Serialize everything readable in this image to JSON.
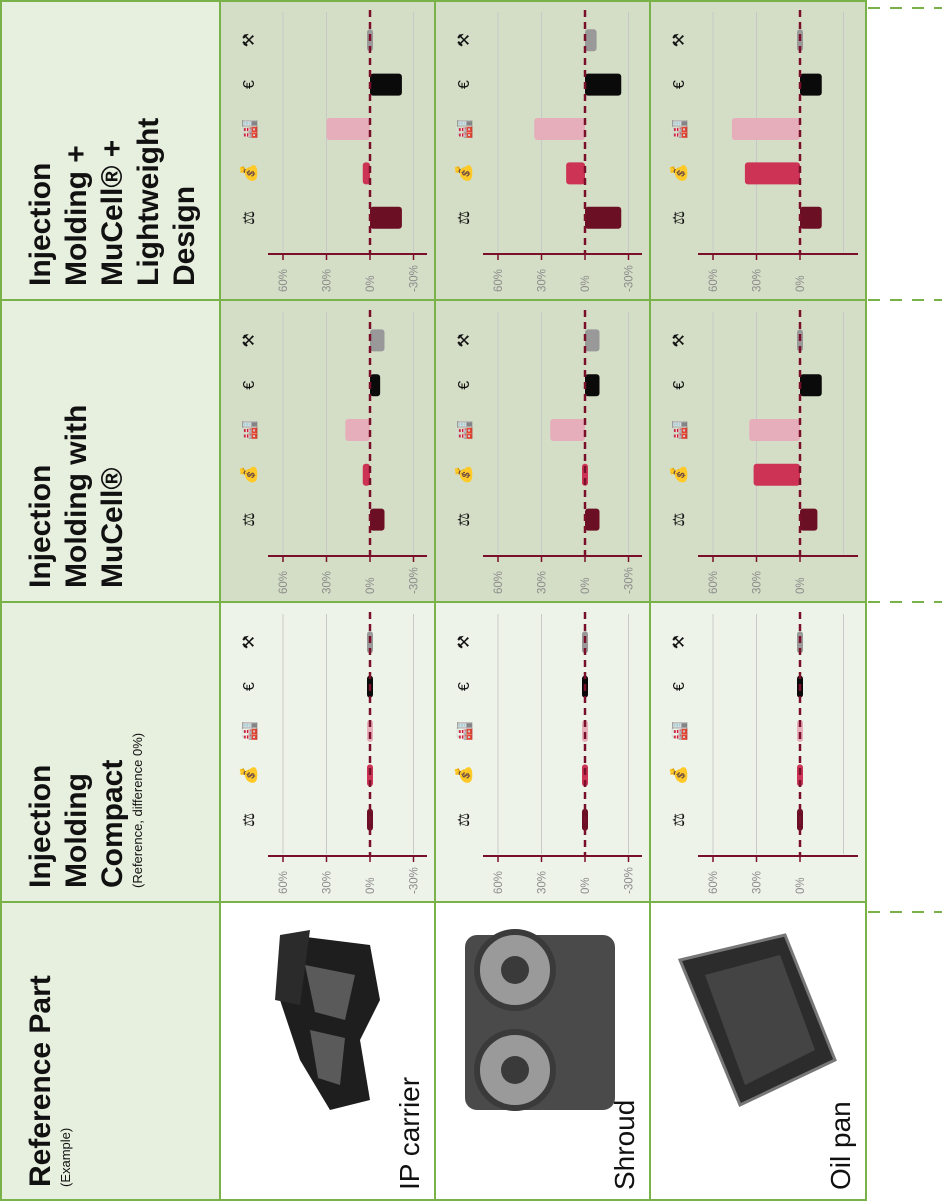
{
  "columns": [
    {
      "lines": [
        "Reference Part"
      ],
      "sub": "(Example)"
    },
    {
      "lines": [
        "Injection",
        "Molding",
        "Compact"
      ],
      "sub": "(Reference, difference 0%)"
    },
    {
      "lines": [
        "Injection",
        "Molding with",
        "MuCell®"
      ],
      "sub": ""
    },
    {
      "lines": [
        "Injection",
        "Molding +",
        "MuCell® +",
        "Lightweight",
        "Design"
      ],
      "sub": ""
    }
  ],
  "rows": [
    {
      "part": "IP carrier",
      "image": "ip-carrier-photo"
    },
    {
      "part": "Shroud",
      "image": "shroud-photo"
    },
    {
      "part": "Oil pan",
      "image": "oil-pan-photo"
    }
  ],
  "criteria": [
    {
      "icon": "weight-icon",
      "glyph": "⚖",
      "color": "#6b0f24"
    },
    {
      "icon": "money-bag-icon",
      "glyph": "💰",
      "color": "#cc3355"
    },
    {
      "icon": "factory-icon",
      "glyph": "🏭",
      "color": "#e6aebb"
    },
    {
      "icon": "euro-icon",
      "glyph": "€",
      "color": "#0a0a0a"
    },
    {
      "icon": "tools-icon",
      "glyph": "⚒",
      "color": "#999999"
    }
  ],
  "colors": {
    "grid_border": "#7ab24a",
    "header_bg": "#e7efde",
    "chart_bg_dark": "#d4dec6",
    "chart_bg_light": "#eef3ea",
    "baseline": "#7a0f2a",
    "axis": "#7a0f2a"
  },
  "chart_data": [
    {
      "type": "bar",
      "method": "Injection Molding Compact",
      "part": "IP carrier",
      "ticks": [
        "60%",
        "30%",
        "0%",
        "-30%"
      ],
      "ylim": [
        -35,
        65
      ],
      "categories": [
        "weight",
        "money",
        "factory",
        "euro",
        "tools"
      ],
      "values": [
        0,
        0,
        0,
        0,
        0
      ]
    },
    {
      "type": "bar",
      "method": "Injection Molding with MuCell®",
      "part": "IP carrier",
      "ticks": [
        "60%",
        "30%",
        "0%",
        "-30%"
      ],
      "ylim": [
        -35,
        65
      ],
      "categories": [
        "weight",
        "money",
        "factory",
        "euro",
        "tools"
      ],
      "values": [
        -10,
        5,
        17,
        -7,
        -10
      ]
    },
    {
      "type": "bar",
      "method": "Injection Molding + MuCell® + Lightweight Design",
      "part": "IP carrier",
      "ticks": [
        "60%",
        "30%",
        "0%",
        "-30%"
      ],
      "ylim": [
        -35,
        65
      ],
      "categories": [
        "weight",
        "money",
        "factory",
        "euro",
        "tools"
      ],
      "values": [
        -22,
        5,
        30,
        -22,
        0
      ]
    },
    {
      "type": "bar",
      "method": "Injection Molding Compact",
      "part": "Shroud",
      "ticks": [
        "60%",
        "30%",
        "0%",
        "-30%"
      ],
      "ylim": [
        -35,
        65
      ],
      "categories": [
        "weight",
        "money",
        "factory",
        "euro",
        "tools"
      ],
      "values": [
        0,
        0,
        0,
        0,
        0
      ]
    },
    {
      "type": "bar",
      "method": "Injection Molding with MuCell®",
      "part": "Shroud",
      "ticks": [
        "60%",
        "30%",
        "0%",
        "-30%"
      ],
      "ylim": [
        -35,
        65
      ],
      "categories": [
        "weight",
        "money",
        "factory",
        "euro",
        "tools"
      ],
      "values": [
        -10,
        2,
        24,
        -10,
        -10
      ]
    },
    {
      "type": "bar",
      "method": "Injection Molding + MuCell® + Lightweight Design",
      "part": "Shroud",
      "ticks": [
        "60%",
        "30%",
        "0%",
        "-30%"
      ],
      "ylim": [
        -35,
        65
      ],
      "categories": [
        "weight",
        "money",
        "factory",
        "euro",
        "tools"
      ],
      "values": [
        -25,
        13,
        35,
        -25,
        -8
      ]
    },
    {
      "type": "bar",
      "method": "Injection Molding Compact",
      "part": "Oil pan",
      "ticks": [
        "60%",
        "30%",
        "0%"
      ],
      "ylim": [
        -35,
        65
      ],
      "categories": [
        "weight",
        "money",
        "factory",
        "euro",
        "tools"
      ],
      "values": [
        0,
        0,
        0,
        0,
        0
      ]
    },
    {
      "type": "bar",
      "method": "Injection Molding with MuCell®",
      "part": "Oil pan",
      "ticks": [
        "60%",
        "30%",
        "0%"
      ],
      "ylim": [
        -35,
        65
      ],
      "categories": [
        "weight",
        "money",
        "factory",
        "euro",
        "tools"
      ],
      "values": [
        -12,
        32,
        35,
        -15,
        0
      ]
    },
    {
      "type": "bar",
      "method": "Injection Molding + MuCell® + Lightweight Design",
      "part": "Oil pan",
      "ticks": [
        "60%",
        "30%",
        "0%"
      ],
      "ylim": [
        -35,
        65
      ],
      "categories": [
        "weight",
        "money",
        "factory",
        "euro",
        "tools"
      ],
      "values": [
        -15,
        38,
        47,
        -15,
        0
      ]
    }
  ]
}
